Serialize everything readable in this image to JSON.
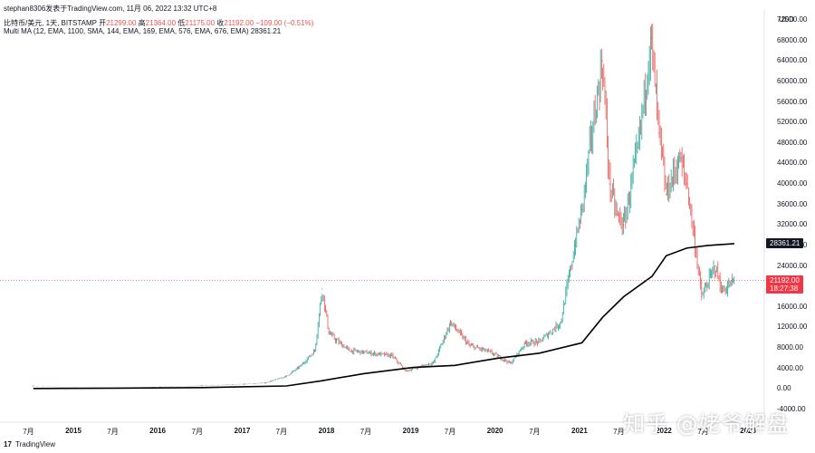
{
  "header": {
    "byline": "stephan8306发表于TradingView.com,   11月 06, 2022 13:32 UTC+8"
  },
  "legend": {
    "symbol": "比特币/美元, 1天, BITSTAMP",
    "open_label": "开",
    "open_value": "21299.00",
    "high_label": "高",
    "high_value": "21364.00",
    "low_label": "低",
    "low_value": "21175.00",
    "close_label": "收",
    "close_value": "21192.00",
    "change": "−109.00 (−0.51%)",
    "ma_label": "Multi MA (12, EMA, 1100, SMA, 144, EMA, 169, EMA, 576, EMA, 676, EMA)",
    "ma_value": "28361.21"
  },
  "currency": "USD",
  "price_tag": {
    "value": "21192.00",
    "countdown": "18:27:38"
  },
  "ma_tag": {
    "value": "28361.21"
  },
  "footer": {
    "logo": "17",
    "brand": "TradingView"
  },
  "watermark": "知乎 @姥爷解盘",
  "colors": {
    "up": "#26a69a",
    "down": "#ef5350",
    "ma_line": "#000000",
    "price_line": "#f23645"
  },
  "chart_data": {
    "type": "line",
    "title": "比特币/美元, 1天, BITSTAMP",
    "y_axis_labels": [
      "72000.00",
      "68000.00",
      "64000.00",
      "60000.00",
      "56000.00",
      "52000.00",
      "48000.00",
      "44000.00",
      "40000.00",
      "36000.00",
      "32000.00",
      "28000.00",
      "24000.00",
      "16000.00",
      "12000.00",
      "8000.00",
      "4000.00",
      "0.00",
      "-4000.00"
    ],
    "x_axis_labels": [
      "7月",
      "2015",
      "7月",
      "2016",
      "7月",
      "2017",
      "7月",
      "2018",
      "7月",
      "2019",
      "7月",
      "2020",
      "7月",
      "2021",
      "7月",
      "2022",
      "7月",
      "2023"
    ],
    "ylim": [
      -4000,
      72000
    ],
    "series": [
      {
        "name": "BTC/USD",
        "x": [
          "2014-07",
          "2015-01",
          "2015-07",
          "2016-01",
          "2016-07",
          "2017-01",
          "2017-04",
          "2017-07",
          "2017-09",
          "2017-11",
          "2017-12-17",
          "2018-01",
          "2018-02",
          "2018-04",
          "2018-07",
          "2018-10",
          "2018-12",
          "2019-04",
          "2019-06-26",
          "2019-09",
          "2019-12",
          "2020-03-12",
          "2020-05",
          "2020-07",
          "2020-10",
          "2020-12",
          "2021-01",
          "2021-02",
          "2021-04-14",
          "2021-05",
          "2021-06",
          "2021-07",
          "2021-09",
          "2021-11-10",
          "2021-12",
          "2022-01",
          "2022-03",
          "2022-04",
          "2022-05",
          "2022-06-18",
          "2022-08",
          "2022-09",
          "2022-11-06"
        ],
        "values": [
          600,
          250,
          250,
          400,
          650,
          950,
          1200,
          2500,
          4500,
          7500,
          19500,
          11000,
          9500,
          7500,
          7000,
          6500,
          3500,
          5200,
          13000,
          8500,
          7200,
          5000,
          9000,
          9200,
          13000,
          28000,
          35000,
          46000,
          64000,
          40000,
          34000,
          32000,
          47000,
          68500,
          50000,
          38000,
          45000,
          40000,
          30000,
          18000,
          24000,
          19000,
          21192
        ]
      },
      {
        "name": "Multi MA",
        "x": [
          "2014-07",
          "2015-07",
          "2016-07",
          "2017-07",
          "2017-12",
          "2018-06",
          "2019-01",
          "2019-07",
          "2020-01",
          "2020-07",
          "2021-01",
          "2021-04",
          "2021-07",
          "2021-11",
          "2022-01",
          "2022-04",
          "2022-07",
          "2022-11-06"
        ],
        "values": [
          100,
          180,
          280,
          600,
          1600,
          3000,
          4200,
          4600,
          6000,
          7000,
          9000,
          14000,
          18000,
          22000,
          26000,
          27500,
          28000,
          28361.21
        ]
      }
    ]
  }
}
